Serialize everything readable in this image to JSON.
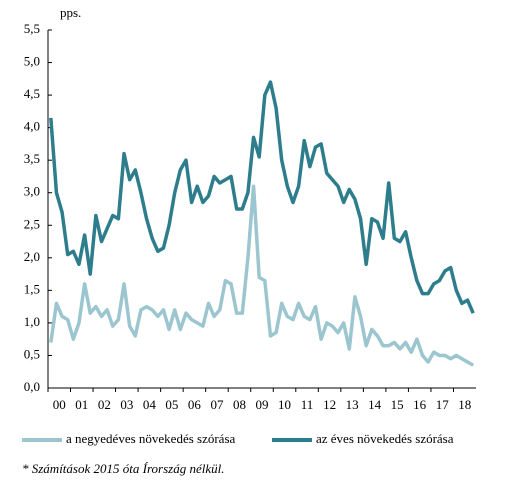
{
  "chart_data": {
    "type": "line",
    "y_axis_label": "pps.",
    "categories": [
      "00",
      null,
      null,
      null,
      "01",
      null,
      null,
      null,
      "02",
      null,
      null,
      null,
      "03",
      null,
      null,
      null,
      "04",
      null,
      null,
      null,
      "05",
      null,
      null,
      null,
      "06",
      null,
      null,
      null,
      "07",
      null,
      null,
      null,
      "08",
      null,
      null,
      null,
      "09",
      null,
      null,
      null,
      "10",
      null,
      null,
      null,
      "11",
      null,
      null,
      null,
      "12",
      null,
      null,
      null,
      "13",
      null,
      null,
      null,
      "14",
      null,
      null,
      null,
      "15",
      null,
      null,
      null,
      "16",
      null,
      null,
      null,
      "17",
      null,
      null,
      null,
      "18",
      null,
      null,
      null
    ],
    "series": [
      {
        "name": "a negyedéves növekedés szórása",
        "color": "#9cc6cf",
        "values": [
          0.7,
          1.3,
          1.1,
          1.05,
          0.75,
          1.0,
          1.6,
          1.15,
          1.25,
          1.1,
          1.2,
          0.95,
          1.05,
          1.6,
          0.95,
          0.8,
          1.2,
          1.25,
          1.2,
          1.1,
          1.2,
          0.9,
          1.2,
          0.9,
          1.15,
          1.05,
          1.0,
          0.95,
          1.3,
          1.1,
          1.2,
          1.65,
          1.6,
          1.15,
          1.15,
          2.0,
          3.1,
          1.7,
          1.65,
          0.8,
          0.85,
          1.3,
          1.1,
          1.05,
          1.3,
          1.1,
          1.05,
          1.25,
          0.75,
          1.0,
          0.95,
          0.85,
          1.0,
          0.6,
          1.4,
          1.1,
          0.65,
          0.9,
          0.8,
          0.65,
          0.65,
          0.7,
          0.6,
          0.7,
          0.55,
          0.75,
          0.5,
          0.4,
          0.55,
          0.5,
          0.5,
          0.45,
          0.5,
          0.45,
          0.4,
          0.35
        ]
      },
      {
        "name": "az éves növekedés szórása",
        "color": "#2e7d8c",
        "values": [
          4.15,
          3.0,
          2.7,
          2.05,
          2.1,
          1.9,
          2.35,
          1.75,
          2.65,
          2.25,
          2.45,
          2.65,
          2.6,
          3.6,
          3.2,
          3.35,
          3.0,
          2.6,
          2.3,
          2.1,
          2.15,
          2.5,
          3.0,
          3.35,
          3.5,
          2.85,
          3.1,
          2.85,
          2.95,
          3.25,
          3.15,
          3.2,
          3.25,
          2.75,
          2.75,
          3.0,
          3.85,
          3.55,
          4.5,
          4.7,
          4.3,
          3.5,
          3.1,
          2.85,
          3.1,
          3.8,
          3.4,
          3.7,
          3.75,
          3.3,
          3.2,
          3.1,
          2.85,
          3.05,
          2.9,
          2.6,
          1.9,
          2.6,
          2.55,
          2.3,
          3.15,
          2.3,
          2.25,
          2.4,
          2.0,
          1.65,
          1.45,
          1.45,
          1.6,
          1.65,
          1.8,
          1.85,
          1.5,
          1.3,
          1.35,
          1.15
        ]
      }
    ],
    "ylim": [
      0,
      5.5
    ],
    "yticks": [
      {
        "value": 0,
        "label": "0,0"
      },
      {
        "value": 0.5,
        "label": "0,5"
      },
      {
        "value": 1,
        "label": "1,0"
      },
      {
        "value": 1.5,
        "label": "1,5"
      },
      {
        "value": 2,
        "label": "2,0"
      },
      {
        "value": 2.5,
        "label": "2,5"
      },
      {
        "value": 3,
        "label": "3,0"
      },
      {
        "value": 3.5,
        "label": "3,5"
      },
      {
        "value": 4,
        "label": "4,0"
      },
      {
        "value": 4.5,
        "label": "4,5"
      },
      {
        "value": 5,
        "label": "5,0"
      },
      {
        "value": 5.5,
        "label": "5,5"
      }
    ],
    "grid": false,
    "legend": "bottom",
    "footnote": "* Számítások 2015 óta Írország nélkül."
  }
}
